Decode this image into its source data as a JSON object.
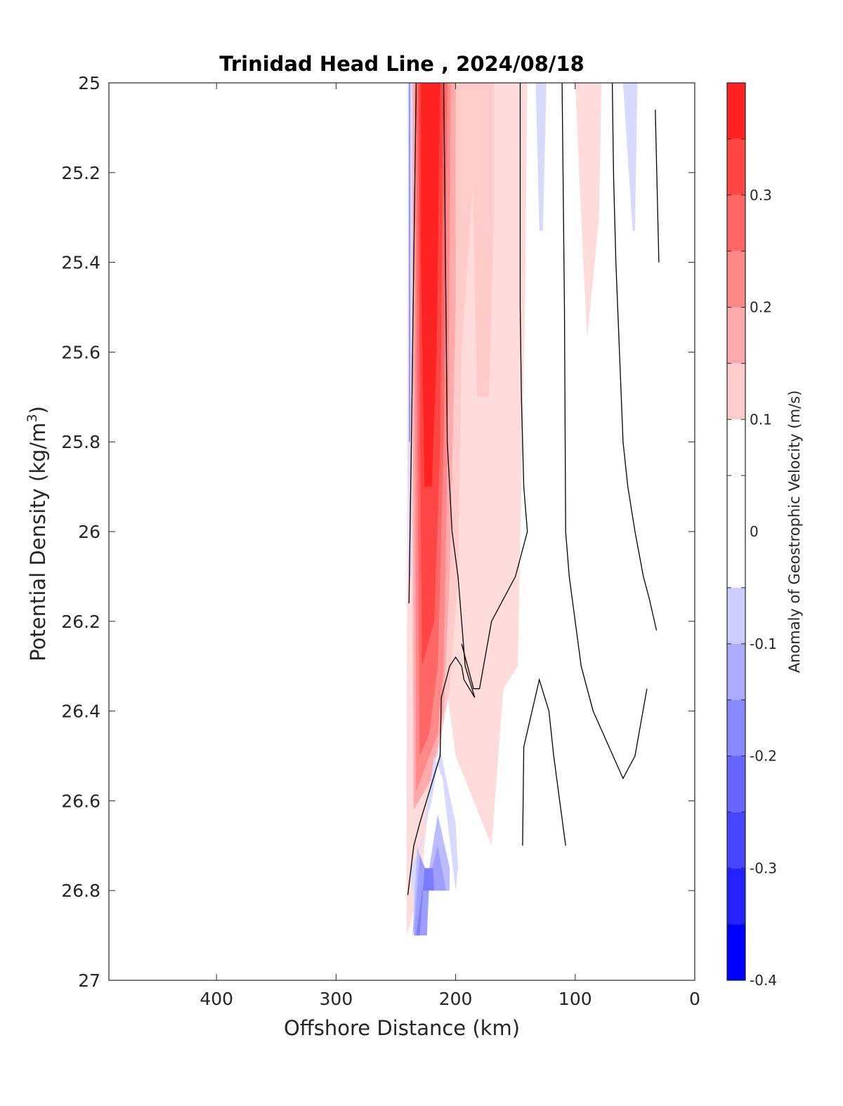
{
  "chart_data": {
    "type": "contourf",
    "title": "Trinidad Head Line , 2024/08/18",
    "xlabel": "Offshore Distance (km)",
    "ylabel": "Potential Density (kg/m³)",
    "ylabel_base": "Potential Density (kg/m",
    "ylabel_sup": "3",
    "ylabel_close": ")",
    "xlim": [
      490,
      0
    ],
    "ylim": [
      27,
      25
    ],
    "x_ticks": [
      400,
      300,
      200,
      100,
      0
    ],
    "y_ticks": [
      25,
      25.2,
      25.4,
      25.6,
      25.8,
      26,
      26.2,
      26.4,
      26.6,
      26.8,
      27
    ],
    "x_tick_labels": [
      "400",
      "300",
      "200",
      "100",
      "0"
    ],
    "y_tick_labels": [
      "25",
      "25.2",
      "25.4",
      "25.6",
      "25.8",
      "26",
      "26.2",
      "26.4",
      "26.6",
      "26.8",
      "27"
    ],
    "colorbar": {
      "label": "Anomaly of Geostrophic Velocity (m/s)",
      "range": [
        -0.4,
        0.4
      ],
      "levels": [
        -0.4,
        -0.35,
        -0.3,
        -0.25,
        -0.2,
        -0.15,
        -0.1,
        -0.05,
        0.05,
        0.1,
        0.15,
        0.2,
        0.25,
        0.3,
        0.35,
        0.4
      ],
      "tick_values": [
        0.3,
        0.2,
        0.1,
        0,
        -0.1,
        -0.2,
        -0.3,
        -0.4
      ],
      "tick_labels": [
        "0.3",
        "0.2",
        "0.1",
        "0",
        "-0.1",
        "-0.2",
        "-0.3",
        "-0.4"
      ],
      "colors": [
        "#0000ff",
        "#2222ff",
        "#4444ff",
        "#6666ff",
        "#8888ff",
        "#aaaaff",
        "#ccccff",
        "#ffffff",
        "#ffffff",
        "#ffcccc",
        "#ffaaaa",
        "#ff8888",
        "#ff6666",
        "#ff4444",
        "#ff2222",
        "#ff0000"
      ]
    },
    "filled_regions": [
      {
        "level": 0.05,
        "color": "#ffdcdc",
        "points": [
          [
            241,
            26.9
          ],
          [
            241,
            26.55
          ],
          [
            240,
            25.5
          ],
          [
            238,
            25
          ],
          [
            140,
            25
          ],
          [
            142,
            25.5
          ],
          [
            148,
            26.3
          ],
          [
            160,
            26.35
          ],
          [
            170,
            26.7
          ],
          [
            200,
            26.5
          ],
          [
            210,
            26.3
          ],
          [
            230,
            26.8
          ]
        ]
      },
      {
        "level": 0.05,
        "color": "#ffdcdc",
        "points": [
          [
            100,
            25
          ],
          [
            78,
            25
          ],
          [
            80,
            25.3
          ],
          [
            90,
            25.57
          ],
          [
            95,
            25.3
          ]
        ]
      },
      {
        "level": 0.1,
        "color": "#ffcaca",
        "points": [
          [
            236,
            26.6
          ],
          [
            237,
            25.6
          ],
          [
            237,
            25
          ],
          [
            192,
            25
          ],
          [
            185,
            25.2
          ],
          [
            195,
            25.6
          ],
          [
            198,
            26.1
          ],
          [
            205,
            26.35
          ],
          [
            215,
            26.5
          ]
        ]
      },
      {
        "level": 0.1,
        "color": "#ffcaca",
        "points": [
          [
            192,
            25
          ],
          [
            168,
            25
          ],
          [
            168,
            25.3
          ],
          [
            172,
            25.7
          ],
          [
            182,
            25.7
          ],
          [
            186,
            25.2
          ]
        ]
      },
      {
        "level": 0.15,
        "color": "#ffaaaa",
        "points": [
          [
            235,
            26.62
          ],
          [
            236,
            25.4
          ],
          [
            236,
            25
          ],
          [
            200,
            25
          ],
          [
            200,
            25.5
          ],
          [
            205,
            26.1
          ],
          [
            210,
            26.4
          ],
          [
            220,
            26.55
          ]
        ]
      },
      {
        "level": 0.2,
        "color": "#ff8888",
        "points": [
          [
            233,
            26.58
          ],
          [
            234,
            25.6
          ],
          [
            234,
            25
          ],
          [
            204,
            25
          ],
          [
            206,
            25.7
          ],
          [
            210,
            26.3
          ],
          [
            215,
            26.45
          ],
          [
            222,
            26.5
          ]
        ]
      },
      {
        "level": 0.25,
        "color": "#ff6666",
        "points": [
          [
            230,
            26.5
          ],
          [
            232,
            25.8
          ],
          [
            233,
            25
          ],
          [
            207,
            25
          ],
          [
            210,
            25.8
          ],
          [
            215,
            26.3
          ],
          [
            222,
            26.45
          ]
        ]
      },
      {
        "level": 0.3,
        "color": "#ff4444",
        "points": [
          [
            228,
            26.3
          ],
          [
            230,
            25.7
          ],
          [
            231,
            25
          ],
          [
            210,
            25
          ],
          [
            213,
            25.8
          ],
          [
            218,
            26.2
          ]
        ]
      },
      {
        "level": 0.35,
        "color": "#ff2222",
        "points": [
          [
            226,
            25.9
          ],
          [
            229,
            25.4
          ],
          [
            229,
            25
          ],
          [
            213,
            25
          ],
          [
            216,
            25.6
          ],
          [
            220,
            25.9
          ]
        ]
      },
      {
        "level": -0.05,
        "color": "#d9d9ff",
        "points": [
          [
            232,
            26.9
          ],
          [
            238,
            26.75
          ],
          [
            228,
            26.7
          ],
          [
            225,
            26.63
          ],
          [
            218,
            26.5
          ],
          [
            211,
            26.55
          ],
          [
            200,
            26.8
          ],
          [
            198,
            26.75
          ],
          [
            200,
            26.65
          ],
          [
            208,
            26.55
          ],
          [
            213,
            26.48
          ],
          [
            220,
            26.6
          ],
          [
            230,
            26.7
          ]
        ]
      },
      {
        "level": -0.05,
        "color": "#d9d9ff",
        "points": [
          [
            240,
            25
          ],
          [
            236,
            25
          ],
          [
            237,
            26.1
          ],
          [
            239,
            26.1
          ]
        ]
      },
      {
        "level": -0.05,
        "color": "#d9d9ff",
        "points": [
          [
            133,
            25
          ],
          [
            124,
            25
          ],
          [
            127,
            25.33
          ],
          [
            130,
            25.33
          ]
        ]
      },
      {
        "level": -0.05,
        "color": "#d9d9ff",
        "points": [
          [
            60,
            25
          ],
          [
            48,
            25
          ],
          [
            50,
            25.33
          ],
          [
            52,
            25.33
          ]
        ]
      },
      {
        "level": -0.1,
        "color": "#bbbbff",
        "points": [
          [
            236,
            26.9
          ],
          [
            225,
            26.8
          ],
          [
            215,
            26.63
          ],
          [
            205,
            26.75
          ],
          [
            205,
            26.8
          ],
          [
            222,
            26.8
          ],
          [
            232,
            26.7
          ]
        ]
      },
      {
        "level": -0.15,
        "color": "#9e9eff",
        "points": [
          [
            235,
            26.9
          ],
          [
            224,
            26.9
          ],
          [
            222,
            26.78
          ],
          [
            215,
            26.7
          ],
          [
            208,
            26.8
          ],
          [
            218,
            26.8
          ],
          [
            230,
            26.72
          ]
        ]
      },
      {
        "level": -0.2,
        "color": "#7c7cff",
        "points": [
          [
            233,
            26.9
          ],
          [
            230,
            26.9
          ],
          [
            226,
            26.75
          ],
          [
            219,
            26.75
          ],
          [
            218,
            26.8
          ],
          [
            228,
            26.8
          ]
        ]
      },
      {
        "level": -0.1,
        "color": "#8a8aff",
        "points": [
          [
            239,
            25
          ],
          [
            238,
            25
          ],
          [
            238,
            25.8
          ],
          [
            239,
            25.8
          ]
        ]
      }
    ],
    "zero_contours": [
      [
        [
          239,
          26.16
        ],
        [
          237,
          25.8
        ],
        [
          235,
          25.4
        ],
        [
          233,
          25
        ]
      ],
      [
        [
          240,
          26.81
        ],
        [
          235,
          26.7
        ],
        [
          230,
          26.65
        ],
        [
          213,
          26.5
        ],
        [
          212,
          26.37
        ],
        [
          205,
          26.3
        ],
        [
          200,
          26.28
        ],
        [
          195,
          26.3
        ],
        [
          193,
          26.33
        ],
        [
          184,
          26.37
        ],
        [
          192,
          26.3
        ],
        [
          195,
          26.2
        ],
        [
          198,
          26.1
        ],
        [
          203,
          26.0
        ],
        [
          207,
          25.8
        ],
        [
          210,
          25.0
        ]
      ],
      [
        [
          146,
          25
        ],
        [
          146,
          25.5
        ],
        [
          145,
          25.7
        ],
        [
          143,
          25.9
        ],
        [
          140,
          26
        ],
        [
          150,
          26.1
        ],
        [
          170,
          26.2
        ],
        [
          180,
          26.35
        ],
        [
          185,
          26.35
        ],
        [
          190,
          26.3
        ],
        [
          195,
          26.25
        ]
      ],
      [
        [
          111,
          25
        ],
        [
          109,
          25.5
        ],
        [
          108,
          26
        ],
        [
          105,
          26.1
        ],
        [
          100,
          26.2
        ],
        [
          95,
          26.3
        ],
        [
          85,
          26.4
        ],
        [
          60,
          26.55
        ],
        [
          50,
          26.5
        ],
        [
          40,
          26.35
        ]
      ],
      [
        [
          69,
          25
        ],
        [
          68,
          25.2
        ],
        [
          66,
          25.4
        ],
        [
          63,
          25.6
        ],
        [
          60,
          25.8
        ],
        [
          56,
          25.9
        ],
        [
          50,
          26.0
        ],
        [
          43,
          26.1
        ],
        [
          38,
          26.15
        ],
        [
          32,
          26.22
        ]
      ],
      [
        [
          33,
          25.06
        ],
        [
          30,
          25.4
        ]
      ],
      [
        [
          144,
          26.7
        ],
        [
          143,
          26.48
        ],
        [
          130,
          26.33
        ],
        [
          122,
          26.4
        ],
        [
          118,
          26.5
        ],
        [
          108,
          26.7
        ]
      ]
    ]
  }
}
